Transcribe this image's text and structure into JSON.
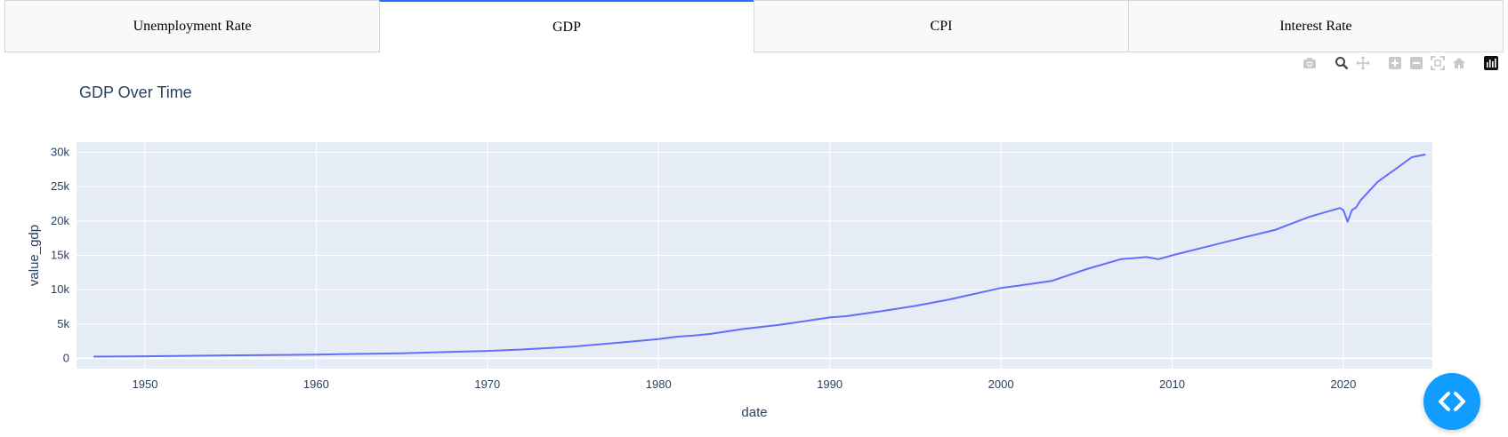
{
  "tabs": [
    {
      "label": "Unemployment Rate",
      "active": false
    },
    {
      "label": "GDP",
      "active": true
    },
    {
      "label": "CPI",
      "active": false
    },
    {
      "label": "Interest Rate",
      "active": false
    }
  ],
  "modebar": [
    "camera-icon",
    "zoom-icon",
    "pan-icon",
    "zoom-in-icon",
    "zoom-out-icon",
    "autoscale-icon",
    "reset-axes-icon",
    "plotly-logo-icon"
  ],
  "chart_data": {
    "type": "line",
    "title": "GDP Over Time",
    "xlabel": "date",
    "ylabel": "value_gdp",
    "xlim": [
      1946.0,
      2025.2
    ],
    "ylim": [
      -1500,
      31500
    ],
    "x_ticks": [
      1950,
      1960,
      1970,
      1980,
      1990,
      2000,
      2010,
      2020
    ],
    "x_tick_labels": [
      "1950",
      "1960",
      "1970",
      "1980",
      "1990",
      "2000",
      "2010",
      "2020"
    ],
    "y_ticks": [
      0,
      5000,
      10000,
      15000,
      20000,
      25000,
      30000
    ],
    "y_tick_labels": [
      "0",
      "5k",
      "10k",
      "15k",
      "20k",
      "25k",
      "30k"
    ],
    "grid": true,
    "colors": {
      "line": "#636efa",
      "plot_bg": "#e5ecf6",
      "grid": "#ffffff",
      "text": "#2a3f5f"
    },
    "series": [
      {
        "x": [
          1947,
          1950,
          1955,
          1960,
          1965,
          1970,
          1972,
          1975,
          1978,
          1980,
          1981,
          1982,
          1983,
          1985,
          1987,
          1990,
          1991,
          1993,
          1995,
          1997,
          2000,
          2001,
          2003,
          2005,
          2007,
          2008.5,
          2009.2,
          2010,
          2012,
          2014,
          2016,
          2018,
          2019.8,
          2020.0,
          2020.25,
          2020.5,
          2020.75,
          2021,
          2022,
          2023,
          2024,
          2024.8
        ],
        "y": [
          243,
          293,
          426,
          543,
          743,
          1073,
          1280,
          1690,
          2350,
          2800,
          3130,
          3300,
          3550,
          4300,
          4860,
          5960,
          6150,
          6860,
          7640,
          8580,
          10250,
          10580,
          11300,
          13000,
          14450,
          14750,
          14450,
          15000,
          16250,
          17500,
          18700,
          20600,
          21900,
          21600,
          19900,
          21600,
          22000,
          23000,
          25700,
          27500,
          29300,
          29700
        ]
      }
    ]
  }
}
